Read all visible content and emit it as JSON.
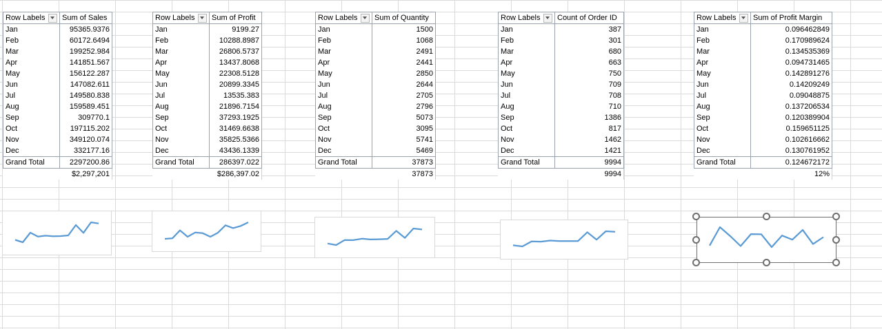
{
  "sheet": {
    "row_labels_header": "Row Labels",
    "grand_total_label": "Grand Total",
    "months": [
      "Jan",
      "Feb",
      "Mar",
      "Apr",
      "May",
      "Jun",
      "Jul",
      "Aug",
      "Sep",
      "Oct",
      "Nov",
      "Dec"
    ]
  },
  "accent_color": "#5b9bd5",
  "pivots": [
    {
      "value_header": "Sum of Sales",
      "values": [
        "95365.9376",
        "60172.6494",
        "199252.984",
        "141851.567",
        "156122.287",
        "147082.611",
        "149580.838",
        "159589.451",
        "309770.1",
        "197115.202",
        "349120.074",
        "332177.16"
      ],
      "grand_total": "2297200.86",
      "formatted_total": "$2,297,201"
    },
    {
      "value_header": "Sum of Profit",
      "values": [
        "9199.27",
        "10288.8987",
        "26806.5737",
        "13437.8068",
        "22308.5128",
        "20899.3345",
        "13535.383",
        "21896.7154",
        "37293.1925",
        "31469.6638",
        "35825.5366",
        "43436.1339"
      ],
      "grand_total": "286397.022",
      "formatted_total": "$286,397.02"
    },
    {
      "value_header": "Sum of Quantity",
      "values": [
        "1500",
        "1068",
        "2491",
        "2441",
        "2850",
        "2644",
        "2705",
        "2796",
        "5073",
        "3095",
        "5741",
        "5469"
      ],
      "grand_total": "37873",
      "formatted_total": "37873"
    },
    {
      "value_header": "Count of Order ID",
      "values": [
        "387",
        "301",
        "680",
        "663",
        "750",
        "709",
        "708",
        "710",
        "1386",
        "817",
        "1462",
        "1421"
      ],
      "grand_total": "9994",
      "formatted_total": "9994"
    },
    {
      "value_header": "Sum of Profit Margin",
      "values": [
        "0.096462849",
        "0.170989624",
        "0.134535369",
        "0.094731465",
        "0.142891276",
        "0.14209249",
        "0.09048875",
        "0.137206534",
        "0.120389904",
        "0.159651125",
        "0.102616662",
        "0.130761952"
      ],
      "grand_total": "0.124672172",
      "formatted_total": "12%"
    }
  ],
  "chart_data": [
    {
      "type": "line",
      "x": [
        "Jan",
        "Feb",
        "Mar",
        "Apr",
        "May",
        "Jun",
        "Jul",
        "Aug",
        "Sep",
        "Oct",
        "Nov",
        "Dec"
      ],
      "series": [
        {
          "values": [
            95365.9376,
            60172.6494,
            199252.984,
            141851.567,
            156122.287,
            147082.611,
            149580.838,
            159589.451,
            309770.1,
            197115.202,
            349120.074,
            332177.16
          ]
        }
      ],
      "grid": false,
      "axes": false
    },
    {
      "type": "line",
      "x": [
        "Jan",
        "Feb",
        "Mar",
        "Apr",
        "May",
        "Jun",
        "Jul",
        "Aug",
        "Sep",
        "Oct",
        "Nov",
        "Dec"
      ],
      "series": [
        {
          "values": [
            9199.27,
            10288.8987,
            26806.5737,
            13437.8068,
            22308.5128,
            20899.3345,
            13535.383,
            21896.7154,
            37293.1925,
            31469.6638,
            35825.5366,
            43436.1339
          ]
        }
      ],
      "grid": false,
      "axes": false
    },
    {
      "type": "line",
      "x": [
        "Jan",
        "Feb",
        "Mar",
        "Apr",
        "May",
        "Jun",
        "Jul",
        "Aug",
        "Sep",
        "Oct",
        "Nov",
        "Dec"
      ],
      "series": [
        {
          "values": [
            1500,
            1068,
            2491,
            2441,
            2850,
            2644,
            2705,
            2796,
            5073,
            3095,
            5741,
            5469
          ]
        }
      ],
      "grid": false,
      "axes": false
    },
    {
      "type": "line",
      "x": [
        "Jan",
        "Feb",
        "Mar",
        "Apr",
        "May",
        "Jun",
        "Jul",
        "Aug",
        "Sep",
        "Oct",
        "Nov",
        "Dec"
      ],
      "series": [
        {
          "values": [
            387,
            301,
            680,
            663,
            750,
            709,
            708,
            710,
            1386,
            817,
            1462,
            1421
          ]
        }
      ],
      "grid": false,
      "axes": false
    },
    {
      "type": "line",
      "x": [
        "Jan",
        "Feb",
        "Mar",
        "Apr",
        "May",
        "Jun",
        "Jul",
        "Aug",
        "Sep",
        "Oct",
        "Nov",
        "Dec"
      ],
      "series": [
        {
          "values": [
            0.096462849,
            0.170989624,
            0.134535369,
            0.094731465,
            0.142891276,
            0.14209249,
            0.09048875,
            0.137206534,
            0.120389904,
            0.159651125,
            0.102616662,
            0.130761952
          ]
        }
      ],
      "grid": false,
      "axes": false,
      "selected": true
    }
  ]
}
